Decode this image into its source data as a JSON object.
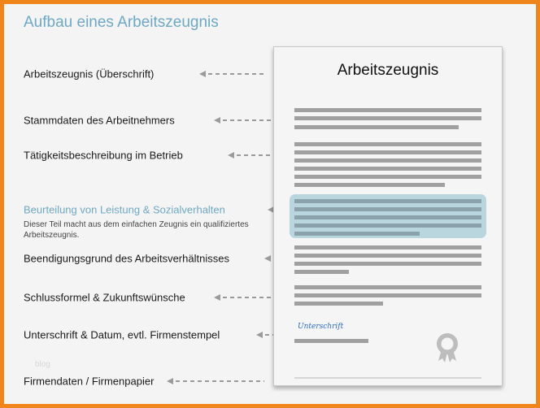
{
  "title": "Aufbau eines Arbeitszeugnis",
  "labels": [
    "Arbeitszeugnis (Überschrift)",
    "Stammdaten des Arbeitnehmers",
    "Tätigkeitsbeschreibung im Betrieb",
    "Beurteilung von Leistung & Sozialverhalten",
    "Beendigungsgrund des Arbeitsverhältnisses",
    "Schlussformel & Zukunftswünsche",
    "Unterschrift & Datum, evtl. Firmenstempel",
    "Firmendaten / Firmenpapier"
  ],
  "highlight_description": "Dieser Teil macht aus dem einfachen Zeugnis ein qualifiziertes Arbeitszeugnis.",
  "document": {
    "title": "Arbeitszeugnis",
    "signature": "Unterschrift",
    "seal_icon": "award-seal-icon"
  },
  "watermark": "blog",
  "colors": {
    "border": "#f0861a",
    "accent": "#6ea8c2",
    "highlight": "#b9d6df"
  }
}
